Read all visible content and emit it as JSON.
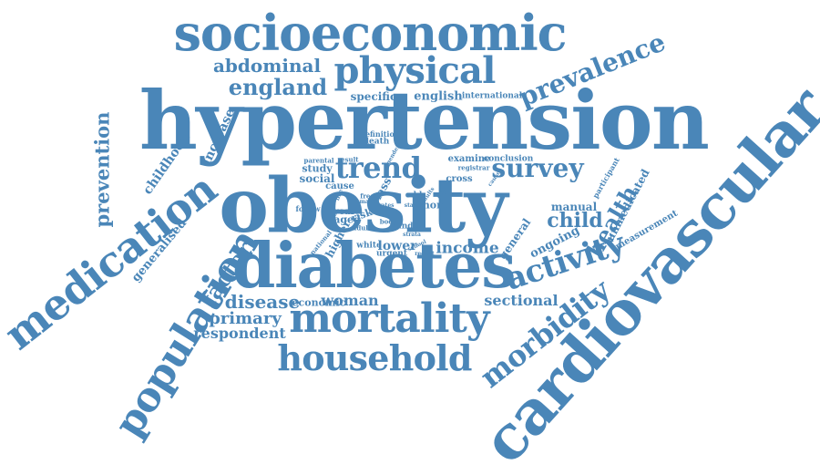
{
  "colors": {
    "word": "#4a86b8",
    "background": "#ffffff"
  },
  "words": [
    "hypertension",
    "obesity",
    "diabetes",
    "cardiovascular",
    "socioeconomic",
    "medication",
    "population",
    "mortality",
    "physical",
    "household",
    "activity",
    "morbidity",
    "trend",
    "survey",
    "prevalence",
    "england",
    "abdominal",
    "prevention",
    "factor",
    "health",
    "child",
    "disease",
    "primary",
    "respondent",
    "income",
    "sectional",
    "lower",
    "woman",
    "economic",
    "childhood",
    "increase",
    "generalised",
    "english",
    "specific",
    "international",
    "unmedicated",
    "ongoing",
    "measurement",
    "manual",
    "general",
    "examine",
    "conclusion",
    "study",
    "social",
    "cause",
    "aged",
    "risk",
    "more",
    "odd",
    "year",
    "higher",
    "white",
    "urgent",
    "index",
    "definition",
    "death",
    "result",
    "class",
    "cross",
    "registrar",
    "participant",
    "parental",
    "follow",
    "national",
    "adult",
    "body",
    "gender",
    "strata",
    "school",
    "recent",
    "mass",
    "free",
    "line",
    "status",
    "causes",
    "rates",
    "adults",
    "boys"
  ]
}
